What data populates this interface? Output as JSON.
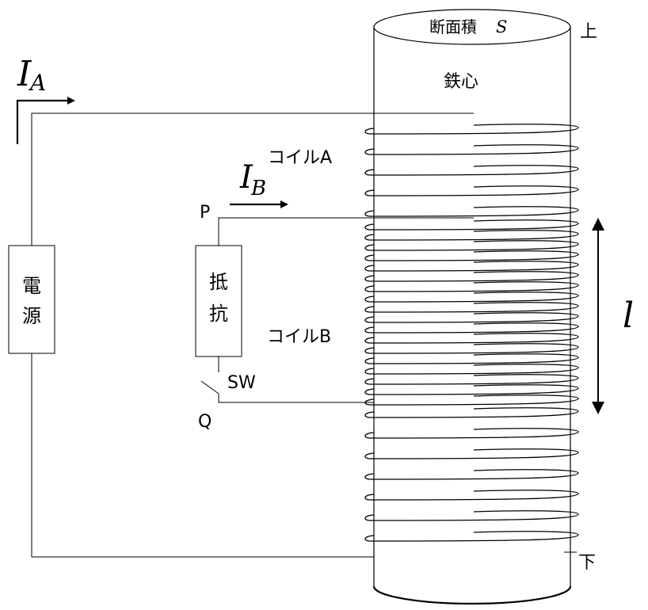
{
  "core": {
    "area_label": "断面積",
    "area_symbol": "S",
    "name": "鉄心",
    "top_label": "上",
    "bottom_label": "下"
  },
  "power_source": {
    "line1": "電",
    "line2": "源"
  },
  "resistor": {
    "line1": "抵",
    "line2": "抗"
  },
  "coil_a_label": "コイルA",
  "coil_b_label": "コイルB",
  "current_a": {
    "symbol": "I",
    "subscript": "A"
  },
  "current_b": {
    "symbol": "I",
    "subscript": "B"
  },
  "point_p": "P",
  "point_q": "Q",
  "switch_label": "SW",
  "length_symbol": "l"
}
